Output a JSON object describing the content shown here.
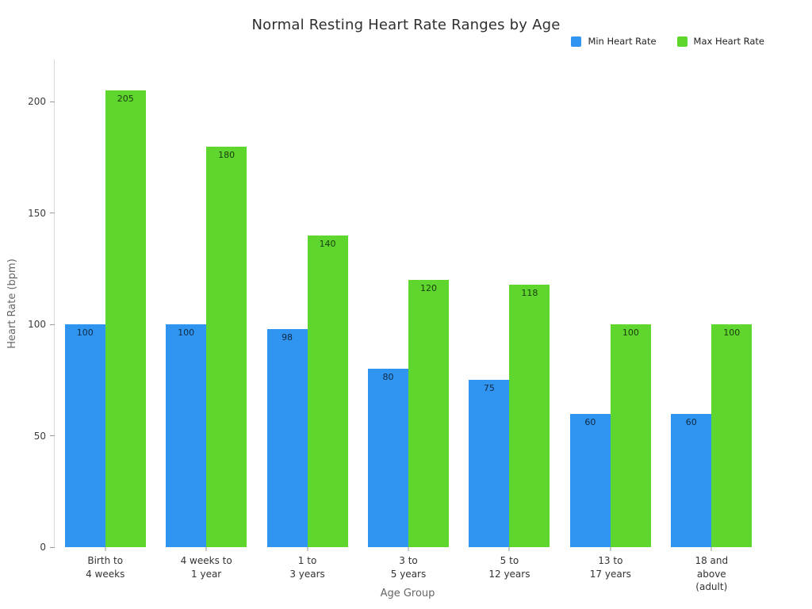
{
  "chart_data": {
    "type": "bar",
    "title": "Normal Resting Heart Rate Ranges by Age",
    "xlabel": "Age Group",
    "ylabel": "Heart Rate (bpm)",
    "categories": [
      "Birth to\n4 weeks",
      "4 weeks to\n1 year",
      "1 to\n3 years",
      "3 to\n5 years",
      "5 to\n12 years",
      "13 to\n17 years",
      "18 and\nabove (adult)"
    ],
    "series": [
      {
        "name": "Min Heart Rate",
        "color": "#3094F1",
        "values": [
          100,
          100,
          98,
          80,
          75,
          60,
          60
        ]
      },
      {
        "name": "Max Heart Rate",
        "color": "#5ED62D",
        "values": [
          205,
          180,
          140,
          120,
          118,
          100,
          100
        ]
      }
    ],
    "ylim": [
      0,
      219
    ],
    "yticks": [
      0,
      50,
      100,
      150,
      200
    ],
    "grid": false,
    "legend_position": "top-right",
    "bar_labels": true,
    "axis_color": "#d9d9d9"
  }
}
